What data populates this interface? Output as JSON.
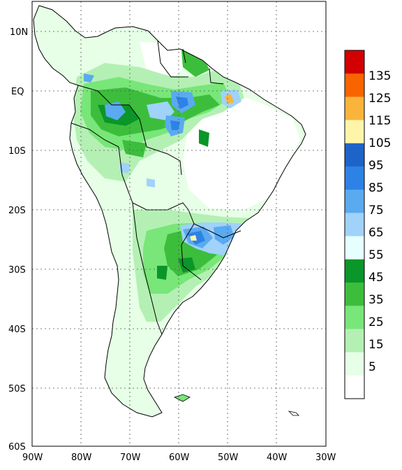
{
  "map": {
    "lat_labels": [
      "10N",
      "EQ",
      "10S",
      "20S",
      "30S",
      "40S",
      "50S",
      "60S"
    ],
    "lon_labels": [
      "90W",
      "80W",
      "70W",
      "60W",
      "50W",
      "40W",
      "30W"
    ],
    "gridlines": "dotted"
  },
  "legend": {
    "labels": [
      "135",
      "125",
      "115",
      "105",
      "95",
      "85",
      "75",
      "65",
      "55",
      "45",
      "35",
      "25",
      "15",
      "5"
    ],
    "colors": [
      "#d20000",
      "#fa6400",
      "#fab43c",
      "#fff5aa",
      "#1e64c8",
      "#2d82e6",
      "#5aaaf0",
      "#a0d2fa",
      "#e6ffff",
      "#0a9628",
      "#3cbe3c",
      "#78e678",
      "#b4f0b4",
      "#e6ffe6",
      "#ffffff"
    ]
  }
}
